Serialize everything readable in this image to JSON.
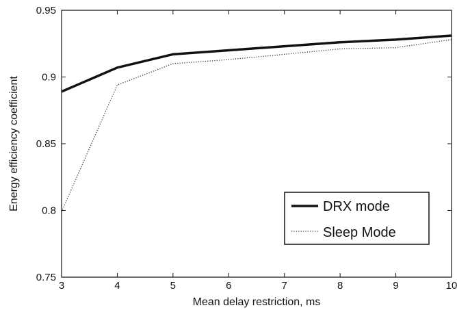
{
  "chart_data": {
    "type": "line",
    "title": "",
    "xlabel": "Mean delay restriction, ms",
    "ylabel": "Energy efficiency coefficient",
    "xlim": [
      3,
      10
    ],
    "ylim": [
      0.75,
      0.95
    ],
    "xticks": [
      3,
      4,
      5,
      6,
      7,
      8,
      9,
      10
    ],
    "xtick_labels": [
      "3",
      "4",
      "5",
      "6",
      "7",
      "8",
      "9",
      "10"
    ],
    "yticks": [
      0.75,
      0.8,
      0.85,
      0.9,
      0.95
    ],
    "ytick_labels": [
      "0.75",
      "0.8",
      "0.85",
      "0.9",
      "0.95"
    ],
    "grid": false,
    "legend_position": "bottom-right",
    "x": [
      3,
      4,
      5,
      6,
      7,
      8,
      9,
      10
    ],
    "series": [
      {
        "name": "DRX mode",
        "style": "solid-thick",
        "color": "#111111",
        "values": [
          0.889,
          0.907,
          0.917,
          0.92,
          0.923,
          0.926,
          0.928,
          0.931
        ]
      },
      {
        "name": "Sleep Mode",
        "style": "dotted",
        "color": "#333333",
        "values": [
          0.799,
          0.894,
          0.91,
          0.913,
          0.917,
          0.921,
          0.922,
          0.928
        ]
      }
    ]
  }
}
